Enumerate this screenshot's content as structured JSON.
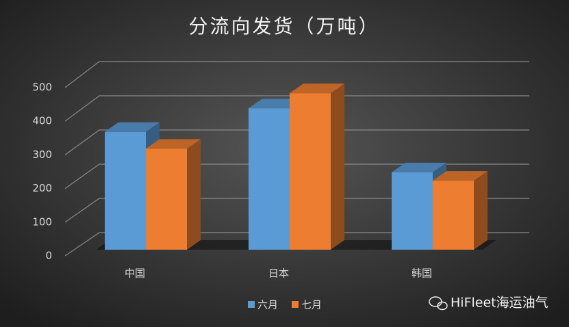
{
  "chart_data": {
    "type": "bar3d",
    "title": "分流向发货（万吨）",
    "categories": [
      "中国",
      "日本",
      "韩国"
    ],
    "series": [
      {
        "name": "六月",
        "color": "#5b9bd5",
        "values": [
          350,
          420,
          230
        ]
      },
      {
        "name": "七月",
        "color": "#ed7d31",
        "values": [
          300,
          465,
          205
        ]
      }
    ],
    "ylim": [
      0,
      500
    ],
    "yticks": [
      0,
      100,
      200,
      300,
      400,
      500
    ],
    "grid": true,
    "legend": "bottom",
    "watermark": "HiFleet海运油气"
  }
}
